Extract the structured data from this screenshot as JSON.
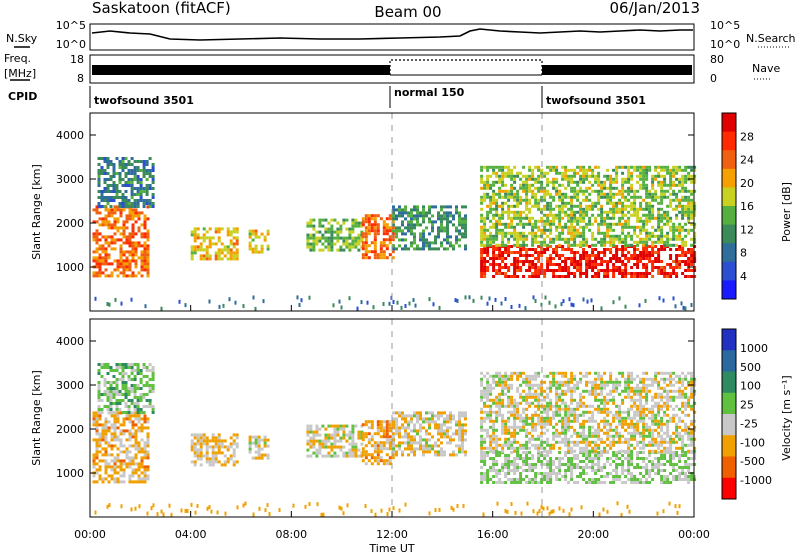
{
  "header": {
    "station": "Saskatoon (fitACF)",
    "beam": "Beam 00",
    "date": "06/Jan/2013"
  },
  "noise_panel": {
    "left_label": "N.Sky",
    "right_label": "N.Search",
    "left_ticks": [
      "10^5",
      "10^0"
    ],
    "right_ticks": [
      "10^5",
      "10^0"
    ]
  },
  "freq_panel": {
    "left_label_1": "Freq.",
    "left_label_2": "[MHz]",
    "left_ticks": [
      "18",
      "8"
    ],
    "right_label": "Nave",
    "right_ticks": [
      "80",
      "0"
    ]
  },
  "cpid_panel": {
    "label": "CPID",
    "segments": [
      {
        "name": "twofsound 3501",
        "start_hour": 0,
        "end_hour": 12
      },
      {
        "name": "normal 150",
        "start_hour": 12,
        "end_hour": 18
      },
      {
        "name": "twofsound 3501",
        "start_hour": 18,
        "end_hour": 24
      }
    ]
  },
  "power_panel": {
    "ylabel": "Slant Range [km]",
    "yticks": [
      "4000",
      "3000",
      "2000",
      "1000"
    ],
    "colorbar_label": "Power [dB]",
    "colorbar_ticks": [
      "28",
      "24",
      "20",
      "16",
      "12",
      "8",
      "4"
    ],
    "colors": [
      "#1a1aff",
      "#2b4fd0",
      "#2f6e9a",
      "#3a8a5a",
      "#55b040",
      "#c8d020",
      "#f5a000",
      "#f06010",
      "#ff2a00",
      "#e00000"
    ]
  },
  "velocity_panel": {
    "ylabel": "Slant Range [km]",
    "yticks": [
      "4000",
      "3000",
      "2000",
      "1000"
    ],
    "colorbar_label": "Velocity [m s⁻¹]",
    "colorbar_ticks": [
      "1000",
      "500",
      "100",
      "25",
      "-25",
      "-100",
      "-500",
      "-1000"
    ],
    "colors": [
      "#2030c0",
      "#2a68a0",
      "#2e8a60",
      "#60c040",
      "#c8c8c8",
      "#f0a000",
      "#f06000",
      "#ff0000"
    ]
  },
  "x_axis": {
    "label": "Time UT",
    "ticks": [
      "00:00",
      "04:00",
      "08:00",
      "12:00",
      "16:00",
      "20:00",
      "00:00"
    ]
  },
  "chart_data": {
    "type": "heatmap",
    "title": "Saskatoon (fitACF) Beam 00 06/Jan/2013",
    "xlabel": "Time UT",
    "ylabel": "Slant Range [km]",
    "xlim_hours": [
      0,
      24
    ],
    "ylim_km": [
      0,
      4500
    ],
    "power_range_db": [
      0,
      30
    ],
    "velocity_range_ms": [
      -1000,
      1000
    ],
    "regions": [
      {
        "t0": 0.1,
        "t1": 2.3,
        "r0": 800,
        "r1": 2400,
        "power": 22,
        "velocity": -300
      },
      {
        "t0": 0.3,
        "t1": 2.5,
        "r0": 2400,
        "r1": 3500,
        "power": 9,
        "velocity": 100
      },
      {
        "t0": 4.0,
        "t1": 5.9,
        "r0": 1200,
        "r1": 1900,
        "power": 18,
        "velocity": -250
      },
      {
        "t0": 6.3,
        "t1": 7.1,
        "r0": 1350,
        "r1": 1850,
        "power": 18,
        "velocity": -200
      },
      {
        "t0": 8.6,
        "t1": 10.8,
        "r0": 1400,
        "r1": 2100,
        "power": 14,
        "velocity": -150
      },
      {
        "t0": 10.8,
        "t1": 12.0,
        "r0": 1200,
        "r1": 2200,
        "power": 22,
        "velocity": -350
      },
      {
        "t0": 12.0,
        "t1": 14.9,
        "r0": 1400,
        "r1": 2400,
        "power": 10,
        "velocity": -200
      },
      {
        "t0": 15.5,
        "t1": 24.0,
        "r0": 800,
        "r1": 1500,
        "power": 27,
        "velocity": 0
      },
      {
        "t0": 15.5,
        "t1": 24.0,
        "r0": 1500,
        "r1": 3300,
        "power": 15,
        "velocity": -150
      }
    ]
  }
}
